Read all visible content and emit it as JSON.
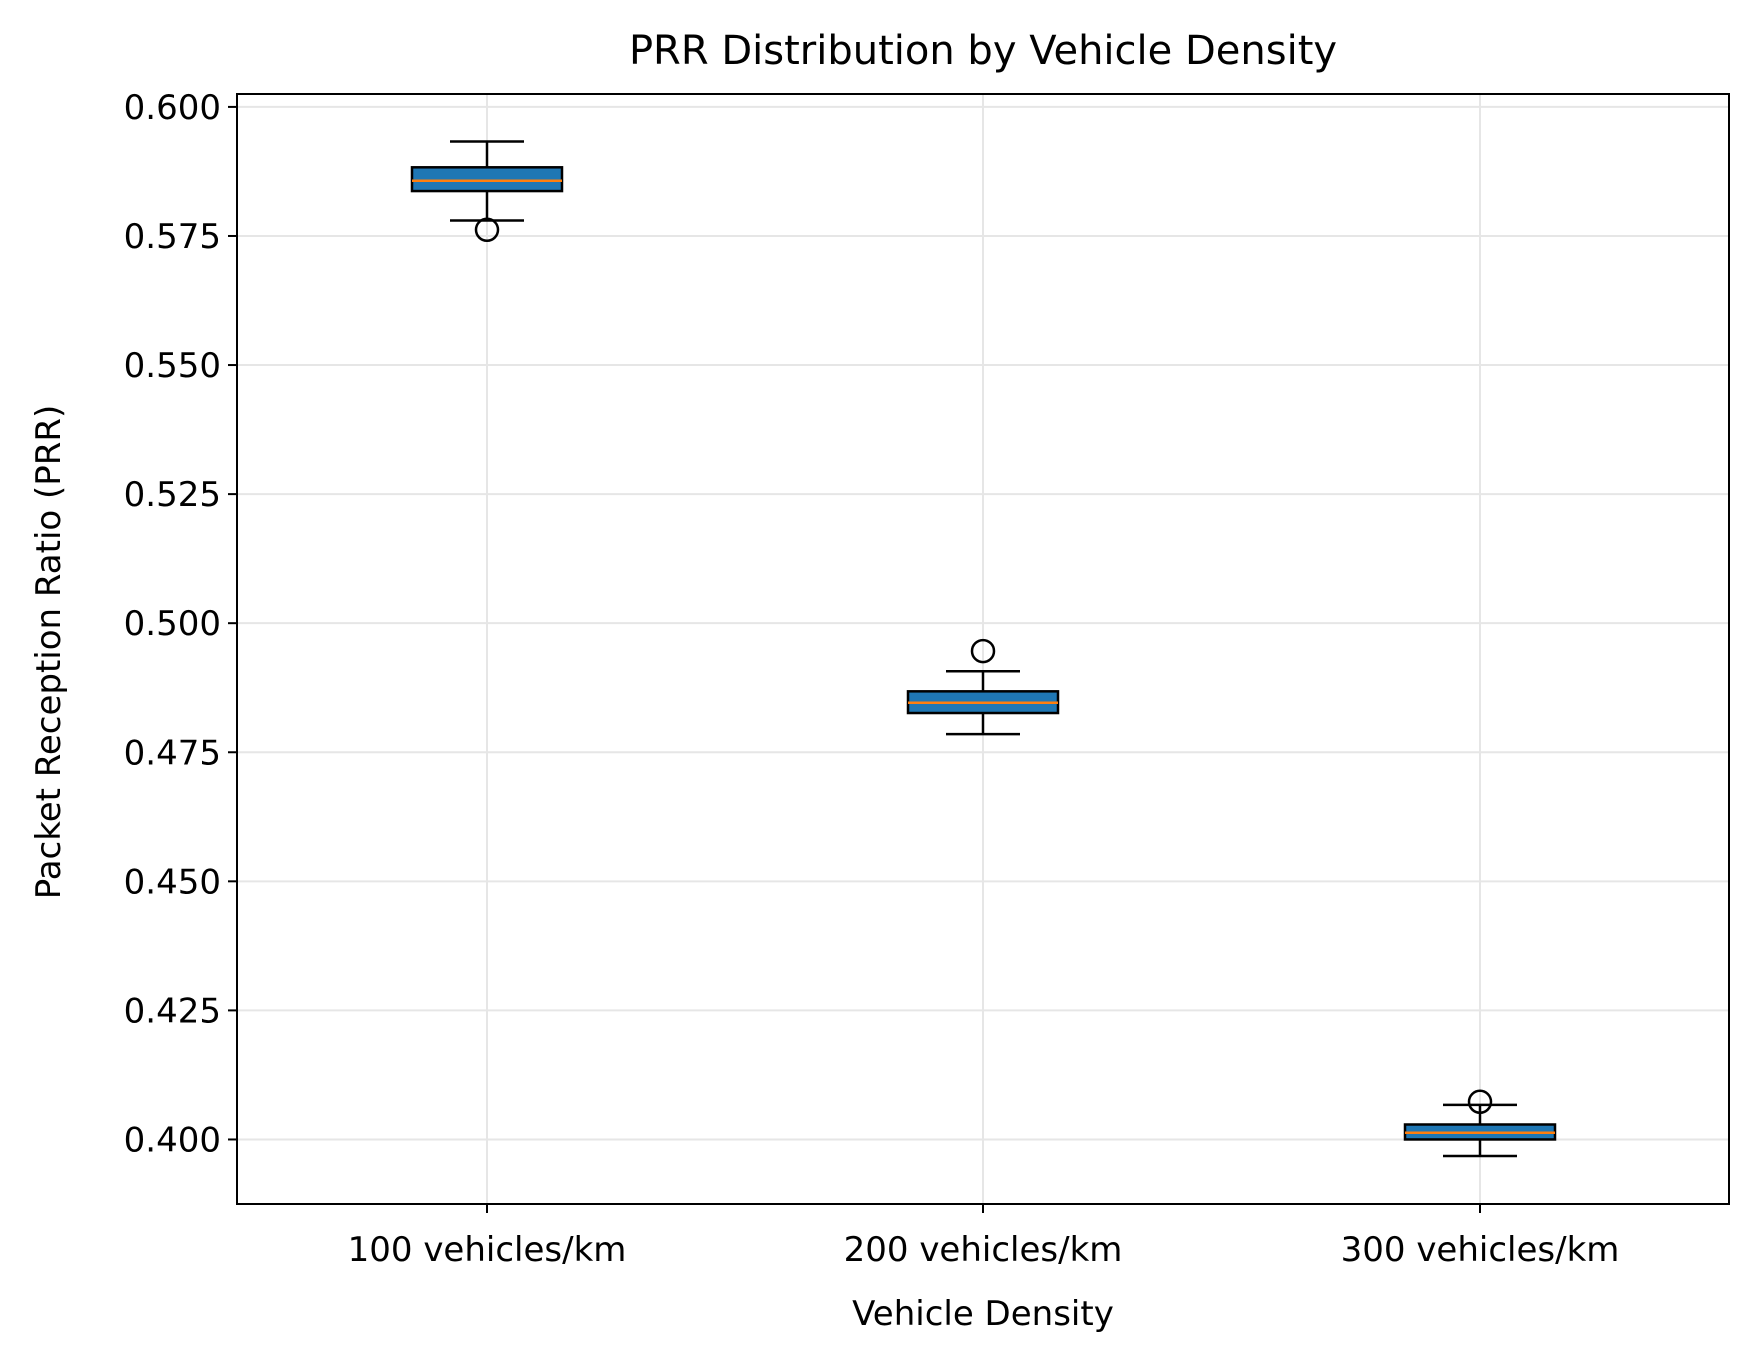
{
  "chart_data": {
    "type": "box",
    "title": "PRR Distribution by Vehicle Density",
    "xlabel": "Vehicle Density",
    "ylabel": "Packet Reception Ratio (PRR)",
    "categories": [
      "100 vehicles/km",
      "200 vehicles/km",
      "300 vehicles/km"
    ],
    "boxes": [
      {
        "category": "100 vehicles/km",
        "whisker_low": 0.578,
        "q1": 0.5837,
        "median": 0.5857,
        "q3": 0.5883,
        "whisker_high": 0.5933,
        "outliers": [
          0.5762
        ]
      },
      {
        "category": "200 vehicles/km",
        "whisker_low": 0.4785,
        "q1": 0.4826,
        "median": 0.4846,
        "q3": 0.4868,
        "whisker_high": 0.4907,
        "outliers": [
          0.4946
        ]
      },
      {
        "category": "300 vehicles/km",
        "whisker_low": 0.3968,
        "q1": 0.4,
        "median": 0.4013,
        "q3": 0.4029,
        "whisker_high": 0.4067,
        "outliers": [
          0.4073
        ]
      }
    ],
    "yticks": [
      "0.400",
      "0.425",
      "0.450",
      "0.475",
      "0.500",
      "0.525",
      "0.550",
      "0.575",
      "0.600"
    ],
    "ytick_values": [
      0.4,
      0.425,
      0.45,
      0.475,
      0.5,
      0.525,
      0.55,
      0.575,
      0.6
    ],
    "ylim": [
      0.3875,
      0.6025
    ],
    "grid": true,
    "colors": {
      "box_fill": "#1f77b4",
      "median": "#ff7f0e",
      "edge": "#000000",
      "grid": "#e6e6e6"
    }
  }
}
